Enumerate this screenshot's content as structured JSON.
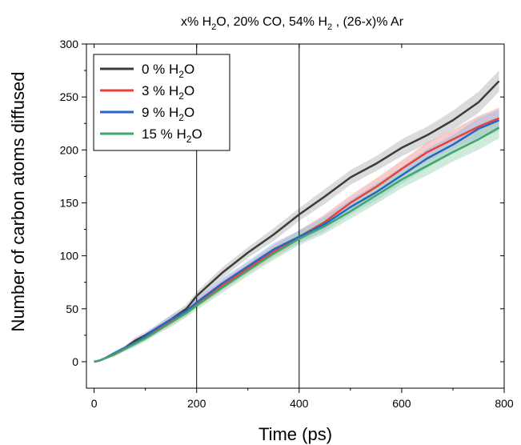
{
  "chart_data": {
    "type": "line",
    "title": {
      "pre": "x% H",
      "sub1": "2",
      "mid1": "O, 20% CO, 54% H",
      "sub2": "2",
      "post": " , (26-x)% Ar"
    },
    "xlabel": "Time (ps)",
    "ylabel": "Number of carbon atoms diffused",
    "xlim": [
      -15,
      800
    ],
    "ylim": [
      -25,
      300
    ],
    "xticks": [
      0,
      200,
      400,
      600,
      800
    ],
    "yticks": [
      0,
      50,
      100,
      150,
      200,
      250,
      300
    ],
    "vlines": [
      200,
      400
    ],
    "legend_position": "top-left",
    "grid": false,
    "series": [
      {
        "name": "0 % H2O",
        "label_pre": "0 % H",
        "label_sub": "2",
        "label_post": "O",
        "color": "#3c3c3c",
        "band_color": "#bdbdbd",
        "x": [
          0,
          10,
          20,
          40,
          60,
          80,
          100,
          120,
          150,
          180,
          200,
          250,
          300,
          350,
          400,
          450,
          500,
          550,
          600,
          650,
          700,
          750,
          790
        ],
        "y": [
          0,
          1,
          3,
          8,
          13,
          20,
          25,
          31,
          40,
          50,
          62,
          84,
          103,
          120,
          139,
          156,
          174,
          187,
          202,
          214,
          228,
          245,
          265
        ],
        "band": [
          1,
          1,
          1,
          2,
          2,
          3,
          3,
          3,
          4,
          4,
          4,
          5,
          5,
          6,
          6,
          7,
          7,
          7,
          8,
          8,
          9,
          10,
          10
        ]
      },
      {
        "name": "3 % H2O",
        "label_pre": "3 % H",
        "label_sub": "2",
        "label_post": "O",
        "color": "#e8423a",
        "band_color": "#f4a3a0",
        "x": [
          0,
          10,
          20,
          40,
          60,
          80,
          100,
          120,
          150,
          180,
          200,
          250,
          300,
          350,
          400,
          450,
          500,
          550,
          600,
          650,
          700,
          750,
          790
        ],
        "y": [
          0,
          1,
          3,
          7,
          12,
          18,
          23,
          29,
          38,
          47,
          55,
          72,
          88,
          104,
          118,
          132,
          150,
          165,
          182,
          198,
          210,
          222,
          230
        ],
        "band": [
          1,
          1,
          1,
          2,
          2,
          3,
          3,
          3,
          4,
          4,
          4,
          5,
          5,
          6,
          6,
          7,
          7,
          8,
          8,
          9,
          9,
          10,
          10
        ]
      },
      {
        "name": "9 % H2O",
        "label_pre": "9 % H",
        "label_sub": "2",
        "label_post": "O",
        "color": "#2566c8",
        "band_color": "#9dbfe8",
        "x": [
          0,
          10,
          20,
          40,
          60,
          80,
          100,
          120,
          150,
          180,
          200,
          250,
          300,
          350,
          400,
          450,
          500,
          550,
          600,
          650,
          700,
          750,
          790
        ],
        "y": [
          0,
          1,
          3,
          8,
          13,
          18,
          24,
          31,
          40,
          48,
          56,
          74,
          90,
          106,
          118,
          130,
          146,
          160,
          176,
          192,
          205,
          220,
          228
        ],
        "band": [
          1,
          1,
          1,
          2,
          2,
          3,
          3,
          3,
          4,
          4,
          4,
          5,
          5,
          6,
          6,
          7,
          7,
          8,
          8,
          9,
          9,
          10,
          10
        ]
      },
      {
        "name": "15 % H2O",
        "label_pre": "15 % H",
        "label_sub": "2",
        "label_post": "O",
        "color": "#3ea86a",
        "band_color": "#a9dbbb",
        "x": [
          0,
          10,
          20,
          40,
          60,
          80,
          100,
          120,
          150,
          180,
          200,
          250,
          300,
          350,
          400,
          450,
          500,
          550,
          600,
          650,
          700,
          750,
          790
        ],
        "y": [
          0,
          1,
          3,
          7,
          12,
          17,
          22,
          28,
          37,
          46,
          53,
          70,
          86,
          102,
          116,
          128,
          142,
          157,
          172,
          185,
          198,
          210,
          221
        ],
        "band": [
          1,
          1,
          1,
          2,
          2,
          3,
          3,
          3,
          4,
          4,
          4,
          5,
          5,
          6,
          6,
          7,
          7,
          8,
          8,
          9,
          9,
          10,
          10
        ]
      }
    ]
  }
}
